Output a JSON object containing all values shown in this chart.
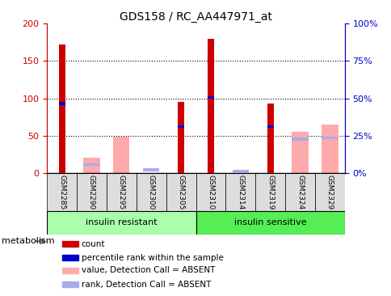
{
  "title": "GDS158 / RC_AA447971_at",
  "samples": [
    "GSM2285",
    "GSM2290",
    "GSM2295",
    "GSM2300",
    "GSM2305",
    "GSM2310",
    "GSM2314",
    "GSM2319",
    "GSM2324",
    "GSM2329"
  ],
  "count": [
    172,
    0,
    0,
    0,
    95,
    180,
    0,
    93,
    0,
    0
  ],
  "rank_left": [
    93,
    0,
    0,
    0,
    62,
    101,
    0,
    62,
    0,
    0
  ],
  "absent_value": [
    0,
    20,
    49,
    0,
    0,
    0,
    0,
    0,
    55,
    65
  ],
  "absent_rank": [
    0,
    11,
    0,
    4,
    0,
    0,
    2,
    0,
    45,
    47
  ],
  "groups": [
    {
      "label": "insulin resistant",
      "start": 0,
      "end": 4,
      "color": "#aaffaa"
    },
    {
      "label": "insulin sensitive",
      "start": 5,
      "end": 9,
      "color": "#55ee55"
    }
  ],
  "ylim_left": [
    0,
    200
  ],
  "ylim_right": [
    0,
    100
  ],
  "yticks_left": [
    0,
    50,
    100,
    150,
    200
  ],
  "yticks_right": [
    0,
    25,
    50,
    75,
    100
  ],
  "yticklabels_right": [
    "0%",
    "25%",
    "50%",
    "75%",
    "100%"
  ],
  "count_color": "#cc0000",
  "rank_color": "#0000cc",
  "absent_value_color": "#ffaaaa",
  "absent_rank_color": "#aaaaee",
  "axis_color_left": "#cc0000",
  "axis_color_right": "#0000cc",
  "metabolism_label": "metabolism",
  "legend_items": [
    {
      "label": "count",
      "color": "#cc0000"
    },
    {
      "label": "percentile rank within the sample",
      "color": "#0000cc"
    },
    {
      "label": "value, Detection Call = ABSENT",
      "color": "#ffaaaa"
    },
    {
      "label": "rank, Detection Call = ABSENT",
      "color": "#aaaaee"
    }
  ]
}
